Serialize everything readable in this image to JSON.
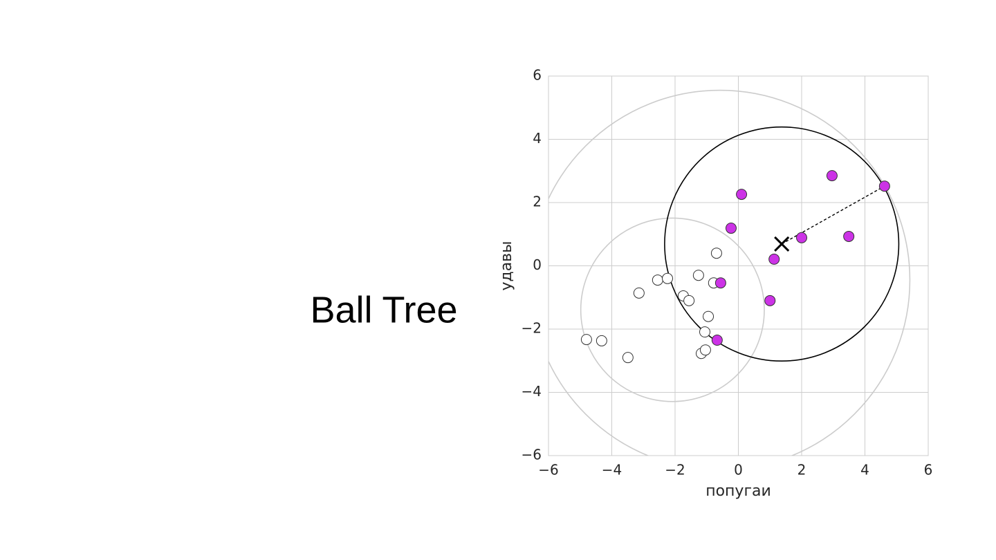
{
  "title": "Ball Tree",
  "chart_data": {
    "type": "scatter",
    "xlabel": "попугаи",
    "ylabel": "удавы",
    "xlim": [
      -6,
      6
    ],
    "ylim": [
      -6,
      6
    ],
    "xticks": [
      {
        "value": -6,
        "label": "−6"
      },
      {
        "value": -4,
        "label": "−4"
      },
      {
        "value": -2,
        "label": "−2"
      },
      0,
      2,
      4,
      6
    ],
    "yticks": [
      {
        "value": -6,
        "label": "−6"
      },
      {
        "value": -4,
        "label": "−4"
      },
      {
        "value": -2,
        "label": "−2"
      },
      0,
      2,
      4,
      6
    ],
    "grid": true,
    "series": [
      {
        "color": "#ffffff",
        "x": [
          -0.69,
          -1.26,
          -0.78,
          -2.55,
          -2.24,
          -3.14,
          -1.74,
          -1.56,
          -0.95,
          -1.06,
          -4.8,
          -4.32,
          -3.49,
          -1.17,
          -1.04
        ],
        "values": [
          0.4,
          -0.3,
          -0.54,
          -0.45,
          -0.4,
          -0.86,
          -0.95,
          -1.1,
          -1.6,
          -2.09,
          -2.33,
          -2.37,
          -2.9,
          -2.77,
          -2.66
        ]
      },
      {
        "color": "#cc33e6",
        "x": [
          0.1,
          -0.23,
          2.96,
          4.62,
          2.0,
          3.49,
          1.13,
          -0.56,
          1.0,
          -0.67
        ],
        "values": [
          2.26,
          1.19,
          2.85,
          2.52,
          0.89,
          0.93,
          0.21,
          -0.54,
          -1.1,
          -2.35
        ]
      }
    ],
    "circles": [
      {
        "x": -0.58,
        "y": -0.45,
        "r": 6.0,
        "color": "#cccccc"
      },
      {
        "x": -2.08,
        "y": -1.39,
        "r": 2.9,
        "color": "#cccccc"
      },
      {
        "x": 1.37,
        "y": 0.69,
        "r": 3.7,
        "color": "#000000"
      }
    ],
    "centroid": {
      "x": 1.37,
      "y": 0.69
    }
  }
}
